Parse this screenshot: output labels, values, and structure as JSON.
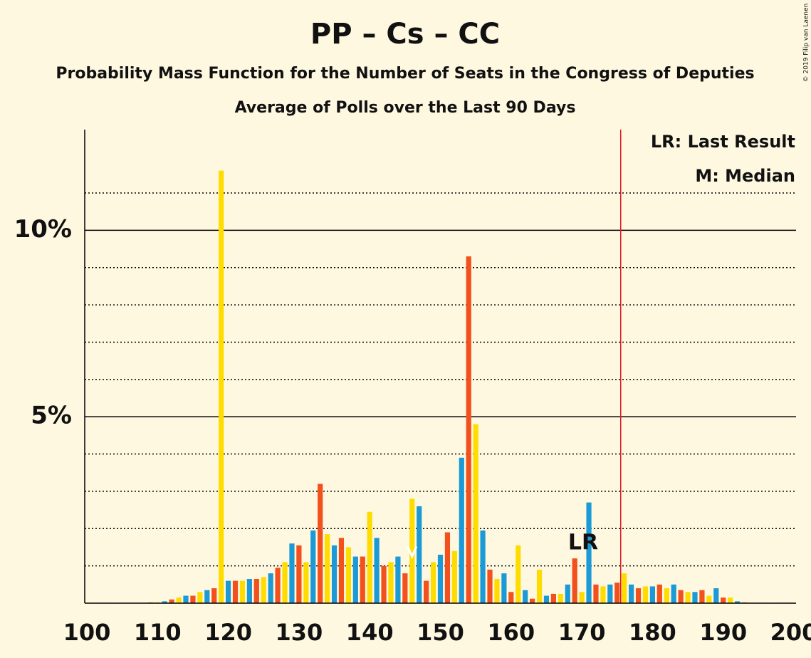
{
  "chart_data": {
    "type": "bar",
    "title": "PP – Cs – CC",
    "subtitle": "Probability Mass Function for the Number of Seats in the Congress of Deputies",
    "subtitle2": "Average of Polls over the Last 90 Days",
    "legend_lr": "LR: Last Result",
    "legend_m": "M: Median",
    "copyright": "© 2019 Filip van Laenen",
    "colors": [
      "#1b9ad6",
      "#f2501c",
      "#ffdc00"
    ],
    "x": [
      100,
      101,
      102,
      103,
      104,
      105,
      106,
      107,
      108,
      109,
      110,
      111,
      112,
      113,
      114,
      115,
      116,
      117,
      118,
      119,
      120,
      121,
      122,
      123,
      124,
      125,
      126,
      127,
      128,
      129,
      130,
      131,
      132,
      133,
      134,
      135,
      136,
      137,
      138,
      139,
      140,
      141,
      142,
      143,
      144,
      145,
      146,
      147,
      148,
      149,
      150,
      151,
      152,
      153,
      154,
      155,
      156,
      157,
      158,
      159,
      160,
      161,
      162,
      163,
      164,
      165,
      166,
      167,
      168,
      169,
      170,
      171,
      172,
      173,
      174,
      175,
      176,
      177,
      178,
      179,
      180,
      181,
      182,
      183,
      184,
      185,
      186,
      187,
      188,
      189,
      190,
      191,
      192,
      193,
      194,
      195,
      196,
      197,
      198,
      199,
      200
    ],
    "values": [
      0.01,
      0.01,
      0.01,
      0.01,
      0.01,
      0.01,
      0.01,
      0.01,
      0.01,
      0.02,
      0.02,
      0.05,
      0.1,
      0.15,
      0.2,
      0.2,
      0.3,
      0.35,
      0.4,
      11.6,
      0.6,
      0.6,
      0.6,
      0.65,
      0.65,
      0.7,
      0.8,
      0.95,
      1.1,
      1.6,
      1.55,
      1.1,
      1.95,
      3.2,
      1.85,
      1.55,
      1.75,
      1.5,
      1.25,
      1.25,
      2.45,
      1.75,
      1.0,
      1.1,
      1.25,
      0.8,
      2.8,
      2.6,
      0.6,
      1.1,
      1.3,
      1.9,
      1.4,
      3.9,
      9.3,
      4.8,
      1.95,
      0.9,
      0.65,
      0.8,
      0.3,
      1.55,
      0.35,
      0.12,
      0.9,
      0.2,
      0.25,
      0.25,
      0.5,
      1.2,
      0.3,
      2.7,
      0.5,
      0.45,
      0.5,
      0.55,
      0.8,
      0.5,
      0.4,
      0.45,
      0.45,
      0.5,
      0.4,
      0.5,
      0.35,
      0.3,
      0.3,
      0.35,
      0.2,
      0.4,
      0.15,
      0.15,
      0.05,
      0.02,
      0.01,
      0.01,
      0.01,
      0.01,
      0.01,
      0.01,
      0.01
    ],
    "xlim": [
      99.7,
      200.3
    ],
    "xticks": [
      100,
      110,
      120,
      130,
      140,
      150,
      160,
      170,
      180,
      190,
      200
    ],
    "ylim": [
      0,
      12.7
    ],
    "yticks": [
      {
        "value": 5,
        "label": "5%"
      },
      {
        "value": 10,
        "label": "10%"
      }
    ],
    "minor_yticks": [
      1,
      2,
      3,
      4,
      6,
      7,
      8,
      9,
      11
    ],
    "majority": 175.5,
    "last_result": {
      "x": 171,
      "label": "LR"
    },
    "median": 146
  }
}
